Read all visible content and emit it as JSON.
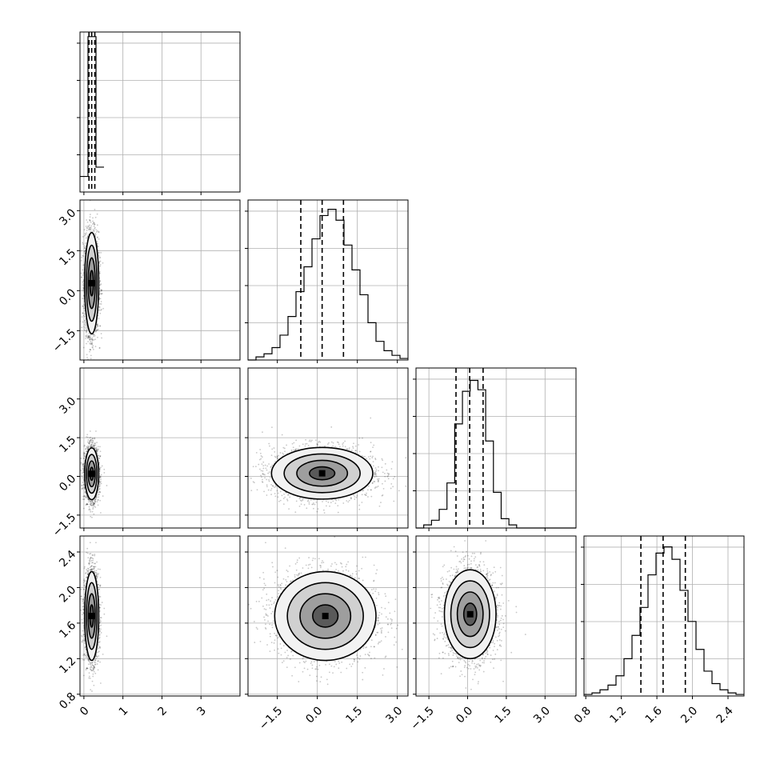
{
  "chart_data": {
    "type": "corner",
    "grid": true,
    "params": [
      {
        "index": 0,
        "range": [
          -0.1,
          4.0
        ],
        "ticks": [
          0,
          1,
          2,
          3
        ],
        "tick_labels": [
          "0",
          "1",
          "2",
          "3"
        ],
        "quantiles": [
          0.13,
          0.2,
          0.28
        ]
      },
      {
        "index": 1,
        "range": [
          -2.6,
          3.4
        ],
        "ticks": [
          -1.5,
          0.0,
          1.5,
          3.0
        ],
        "tick_labels": [
          "−1.5",
          "0.0",
          "1.5",
          "3.0"
        ],
        "quantiles": [
          -0.62,
          0.18,
          0.98
        ]
      },
      {
        "index": 2,
        "range": [
          -2.0,
          4.2
        ],
        "ticks": [
          -1.5,
          0.0,
          1.5,
          3.0
        ],
        "tick_labels": [
          "−1.5",
          "0.0",
          "1.5",
          "3.0"
        ],
        "quantiles": [
          -0.45,
          0.08,
          0.6
        ]
      },
      {
        "index": 3,
        "range": [
          0.78,
          2.58
        ],
        "ticks": [
          0.8,
          1.2,
          1.6,
          2.0,
          2.4
        ],
        "tick_labels": [
          "0.8",
          "1.2",
          "1.6",
          "2.0",
          "2.4"
        ],
        "quantiles": [
          1.42,
          1.67,
          1.92
        ]
      }
    ],
    "histograms": [
      {
        "param": 0,
        "edges": [
          -0.1,
          0.105,
          0.31,
          0.515
        ],
        "counts": [
          0.1,
          1.0,
          0.16
        ]
      },
      {
        "param": 1,
        "edges": [
          -2.6,
          -2.3,
          -2.0,
          -1.7,
          -1.4,
          -1.1,
          -0.8,
          -0.5,
          -0.2,
          0.1,
          0.4,
          0.7,
          1.0,
          1.3,
          1.6,
          1.9,
          2.2,
          2.5,
          2.8,
          3.1,
          3.4
        ],
        "counts": [
          0.0,
          0.02,
          0.04,
          0.08,
          0.16,
          0.28,
          0.44,
          0.6,
          0.78,
          0.93,
          0.97,
          0.9,
          0.74,
          0.58,
          0.42,
          0.24,
          0.12,
          0.06,
          0.03,
          0.01
        ]
      },
      {
        "param": 2,
        "edges": [
          -2.0,
          -1.7,
          -1.4,
          -1.1,
          -0.8,
          -0.5,
          -0.2,
          0.1,
          0.4,
          0.7,
          1.0,
          1.3,
          1.6,
          1.9,
          2.2,
          2.5,
          2.8,
          3.1,
          3.4,
          3.7,
          4.0,
          4.2
        ],
        "counts": [
          0.0,
          0.02,
          0.05,
          0.12,
          0.29,
          0.67,
          0.88,
          0.95,
          0.89,
          0.56,
          0.23,
          0.06,
          0.02,
          0.0,
          0.0,
          0.0,
          0.0,
          0.0,
          0.0,
          0.0,
          0.0
        ]
      },
      {
        "param": 3,
        "edges": [
          0.78,
          0.87,
          0.96,
          1.05,
          1.14,
          1.23,
          1.32,
          1.41,
          1.5,
          1.59,
          1.68,
          1.77,
          1.86,
          1.95,
          2.04,
          2.13,
          2.22,
          2.31,
          2.4,
          2.49,
          2.58
        ],
        "counts": [
          0.01,
          0.02,
          0.04,
          0.07,
          0.13,
          0.24,
          0.39,
          0.57,
          0.78,
          0.92,
          0.96,
          0.88,
          0.68,
          0.48,
          0.3,
          0.16,
          0.08,
          0.04,
          0.02,
          0.01
        ]
      }
    ],
    "pairs": [
      {
        "x": 0,
        "y": 1,
        "center": [
          0.2,
          0.28
        ],
        "spread": [
          0.09,
          0.95
        ],
        "rho": 0.0
      },
      {
        "x": 0,
        "y": 2,
        "center": [
          0.2,
          0.1
        ],
        "spread": [
          0.09,
          0.5
        ],
        "rho": 0.0
      },
      {
        "x": 1,
        "y": 2,
        "center": [
          0.18,
          0.12
        ],
        "spread": [
          0.95,
          0.5
        ],
        "rho": 0.0
      },
      {
        "x": 0,
        "y": 3,
        "center": [
          0.2,
          1.68
        ],
        "spread": [
          0.09,
          0.25
        ],
        "rho": 0.0
      },
      {
        "x": 1,
        "y": 3,
        "center": [
          0.3,
          1.68
        ],
        "spread": [
          0.95,
          0.25
        ],
        "rho": -0.05
      },
      {
        "x": 2,
        "y": 3,
        "center": [
          0.1,
          1.7
        ],
        "spread": [
          0.5,
          0.25
        ],
        "rho": 0.0
      }
    ],
    "contour_levels_sigma": [
      0.5,
      1.0,
      1.5,
      2.0
    ]
  }
}
